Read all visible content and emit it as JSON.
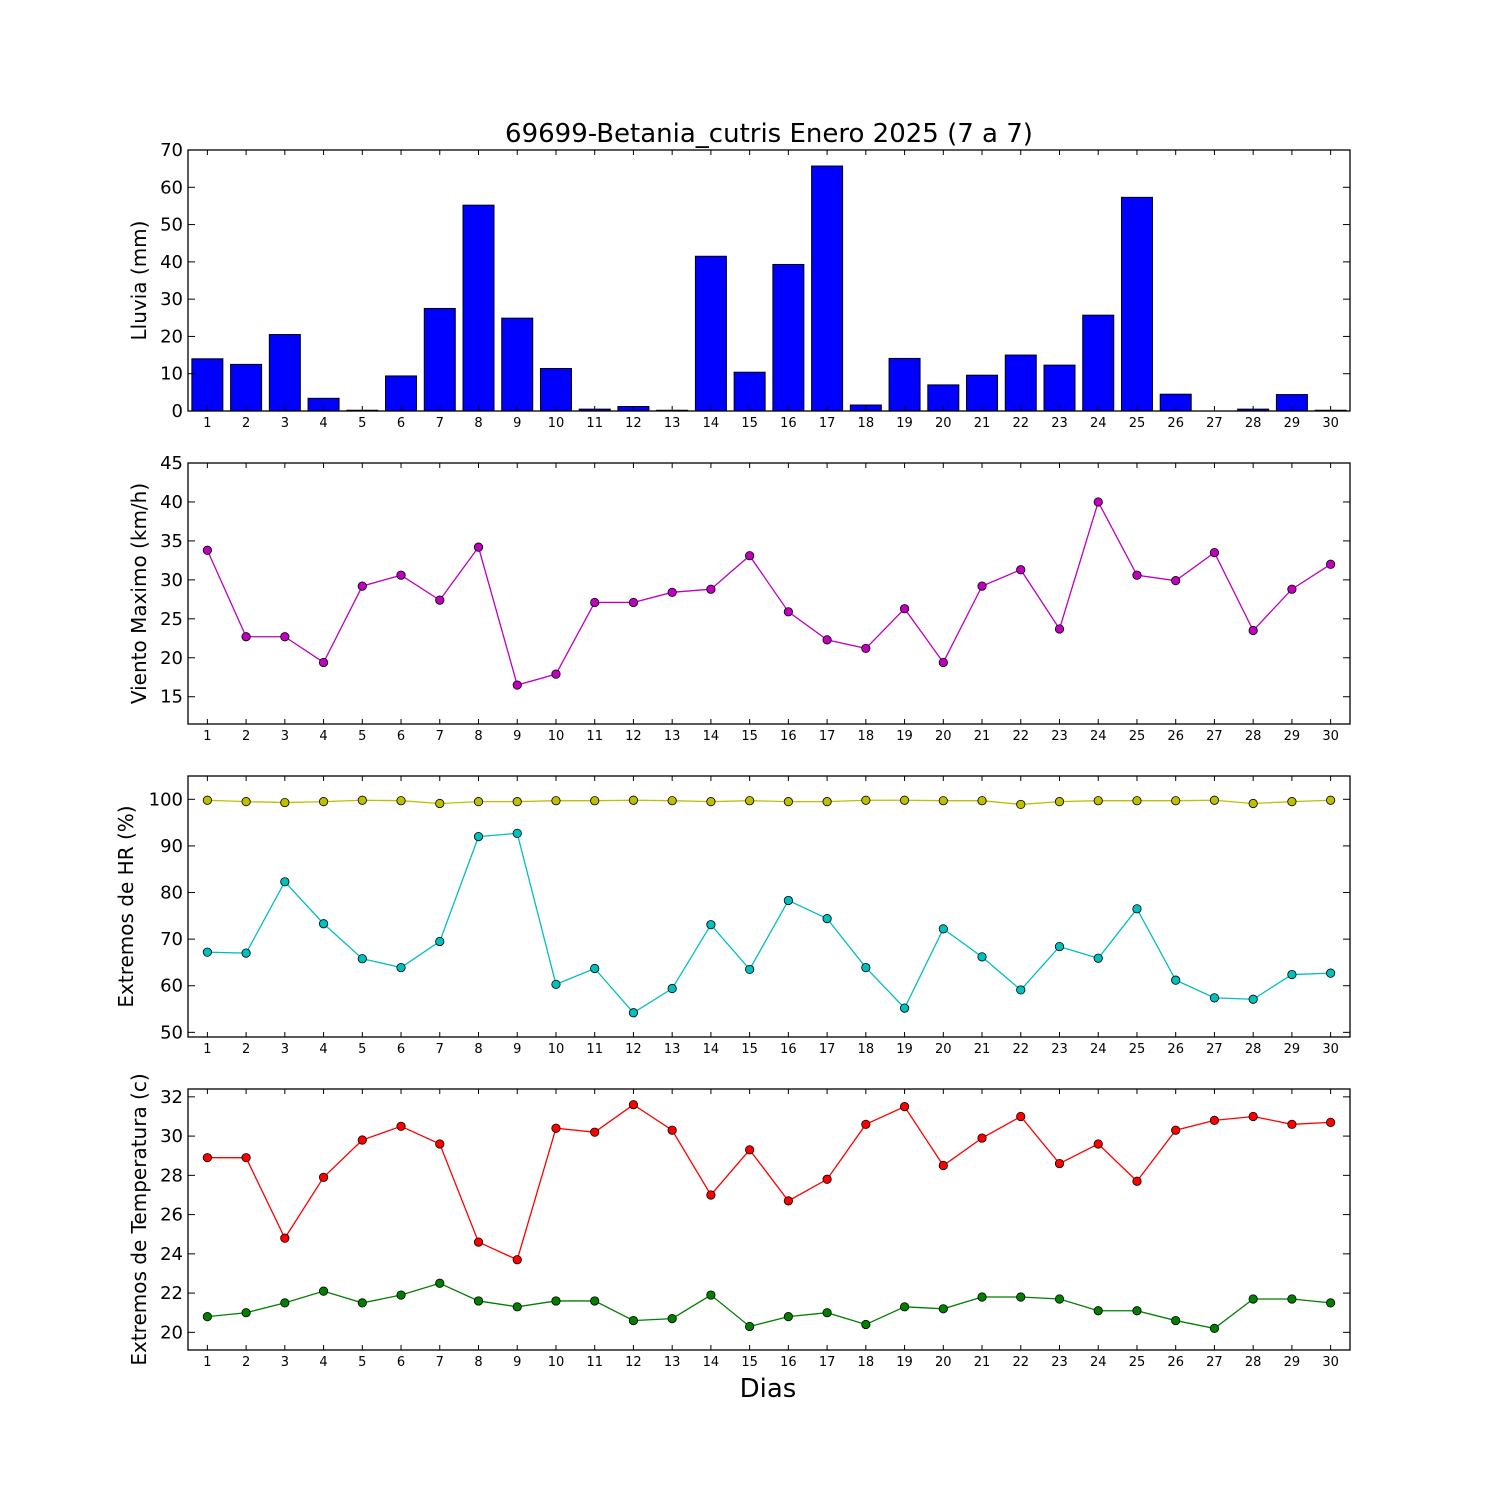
{
  "title": "69699-Betania_cutris Enero 2025  (7 a 7)",
  "xlabel": "Dias",
  "chart_data": [
    {
      "type": "bar",
      "ylabel": "Lluvia (mm)",
      "ylim": [
        0,
        70
      ],
      "yticks": [
        0,
        10,
        20,
        30,
        40,
        50,
        60,
        70
      ],
      "x": [
        1,
        2,
        3,
        4,
        5,
        6,
        7,
        8,
        9,
        10,
        11,
        12,
        13,
        14,
        15,
        16,
        17,
        18,
        19,
        20,
        21,
        22,
        23,
        24,
        25,
        26,
        27,
        28,
        29,
        30
      ],
      "series": [
        {
          "color": "#0000ff",
          "values": [
            14.0,
            12.5,
            20.5,
            3.4,
            0.2,
            9.4,
            27.5,
            55.2,
            24.9,
            11.4,
            0.5,
            1.2,
            0.2,
            41.5,
            10.4,
            39.3,
            65.7,
            1.6,
            14.1,
            7.0,
            9.6,
            15.0,
            12.3,
            25.7,
            57.3,
            4.5,
            0.0,
            0.5,
            4.4,
            0.2
          ]
        }
      ]
    },
    {
      "type": "line",
      "ylabel": "Viento Maximo (km/h)",
      "ylim": [
        11.5,
        45
      ],
      "yticks": [
        15,
        20,
        25,
        30,
        35,
        40,
        45
      ],
      "x": [
        1,
        2,
        3,
        4,
        5,
        6,
        7,
        8,
        9,
        10,
        11,
        12,
        13,
        14,
        15,
        16,
        17,
        18,
        19,
        20,
        21,
        22,
        23,
        24,
        25,
        26,
        27,
        28,
        29,
        30
      ],
      "series": [
        {
          "color": "#bf00bf",
          "values": [
            33.8,
            22.7,
            22.7,
            19.4,
            29.2,
            30.6,
            27.4,
            34.2,
            16.5,
            17.9,
            27.1,
            27.1,
            28.4,
            28.8,
            33.1,
            25.9,
            22.3,
            21.2,
            26.3,
            19.4,
            29.2,
            31.3,
            23.7,
            40.0,
            30.6,
            29.9,
            33.5,
            23.5,
            28.8,
            32.0
          ]
        }
      ]
    },
    {
      "type": "line",
      "ylabel": "Extremos de HR (%)",
      "ylim": [
        49,
        105
      ],
      "yticks": [
        50,
        60,
        70,
        80,
        90,
        100
      ],
      "x": [
        1,
        2,
        3,
        4,
        5,
        6,
        7,
        8,
        9,
        10,
        11,
        12,
        13,
        14,
        15,
        16,
        17,
        18,
        19,
        20,
        21,
        22,
        23,
        24,
        25,
        26,
        27,
        28,
        29,
        30
      ],
      "series": [
        {
          "color": "#bfbf00",
          "values": [
            99.8,
            99.5,
            99.3,
            99.5,
            99.8,
            99.7,
            99.1,
            99.5,
            99.5,
            99.7,
            99.7,
            99.8,
            99.7,
            99.5,
            99.7,
            99.5,
            99.5,
            99.8,
            99.8,
            99.7,
            99.7,
            98.9,
            99.5,
            99.7,
            99.7,
            99.7,
            99.8,
            99.1,
            99.5,
            99.8
          ]
        },
        {
          "color": "#00bfbf",
          "values": [
            67.2,
            67.0,
            82.3,
            73.3,
            65.8,
            63.9,
            69.5,
            92.0,
            92.7,
            60.3,
            63.7,
            54.2,
            59.4,
            73.1,
            63.5,
            78.3,
            74.4,
            63.9,
            55.2,
            72.2,
            66.2,
            59.1,
            68.4,
            65.9,
            76.5,
            61.2,
            57.4,
            57.1,
            62.4,
            62.7
          ]
        }
      ]
    },
    {
      "type": "line",
      "ylabel": "Extremos de Temperatura (c)",
      "ylim": [
        19.1,
        32.4
      ],
      "yticks": [
        20,
        22,
        24,
        26,
        28,
        30,
        32
      ],
      "x": [
        1,
        2,
        3,
        4,
        5,
        6,
        7,
        8,
        9,
        10,
        11,
        12,
        13,
        14,
        15,
        16,
        17,
        18,
        19,
        20,
        21,
        22,
        23,
        24,
        25,
        26,
        27,
        28,
        29,
        30
      ],
      "series": [
        {
          "color": "#ff0000",
          "values": [
            28.9,
            28.9,
            24.8,
            27.9,
            29.8,
            30.5,
            29.6,
            24.6,
            23.7,
            30.4,
            30.2,
            31.6,
            30.3,
            27.0,
            29.3,
            26.7,
            27.8,
            30.6,
            31.5,
            28.5,
            29.9,
            31.0,
            28.6,
            29.6,
            27.7,
            30.3,
            30.8,
            31.0,
            30.6,
            30.7
          ]
        },
        {
          "color": "#007f00",
          "values": [
            20.8,
            21.0,
            21.5,
            22.1,
            21.5,
            21.9,
            22.5,
            21.6,
            21.3,
            21.6,
            21.6,
            20.6,
            20.7,
            21.9,
            20.3,
            20.8,
            21.0,
            20.4,
            21.3,
            21.2,
            21.8,
            21.8,
            21.7,
            21.1,
            21.1,
            20.6,
            20.2,
            21.7,
            21.7,
            21.5
          ]
        }
      ]
    }
  ]
}
